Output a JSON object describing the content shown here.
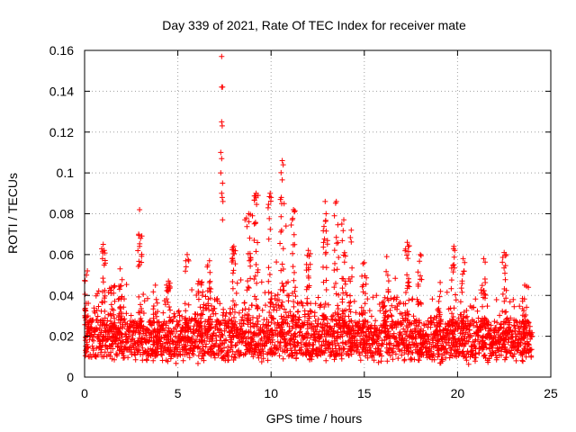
{
  "chart_data": {
    "type": "scatter",
    "title": "Day 339 of 2021, Rate Of TEC Index for receiver mate",
    "xlabel": "GPS time / hours",
    "ylabel": "ROTI / TECUs",
    "xlim": [
      0,
      25
    ],
    "ylim": [
      0,
      0.16
    ],
    "xticks": [
      0,
      5,
      10,
      15,
      20,
      25
    ],
    "yticks": [
      0,
      0.02,
      0.04,
      0.06,
      0.08,
      0.1,
      0.12,
      0.14,
      0.16
    ],
    "xtick_labels": [
      "0",
      "5",
      "10",
      "15",
      "20",
      "25"
    ],
    "ytick_labels": [
      "0",
      "0.02",
      "0.04",
      "0.06",
      "0.08",
      "0.1",
      "0.12",
      "0.14",
      "0.16"
    ],
    "grid": true,
    "marker": "+",
    "color": "#ff0000",
    "data_coverage_hours": [
      0,
      24
    ],
    "series": [
      {
        "points": [
          [
            7.35,
            0.157
          ],
          [
            7.35,
            0.142
          ],
          [
            7.4,
            0.142
          ],
          [
            7.35,
            0.125
          ],
          [
            7.38,
            0.123
          ],
          [
            7.3,
            0.11
          ],
          [
            7.35,
            0.107
          ],
          [
            7.3,
            0.1
          ],
          [
            7.4,
            0.095
          ],
          [
            7.35,
            0.09
          ],
          [
            7.38,
            0.088
          ],
          [
            7.42,
            0.086
          ],
          [
            7.4,
            0.077
          ],
          [
            2.95,
            0.082
          ],
          [
            10.6,
            0.106
          ],
          [
            10.65,
            0.104
          ],
          [
            10.55,
            0.088
          ],
          [
            10.5,
            0.087
          ],
          [
            10.7,
            0.085
          ],
          [
            11.2,
            0.082
          ],
          [
            11.25,
            0.081
          ],
          [
            10.8,
            0.074
          ],
          [
            9.2,
            0.09
          ],
          [
            9.3,
            0.089
          ],
          [
            8.8,
            0.08
          ],
          [
            9.0,
            0.079
          ],
          [
            8.6,
            0.077
          ],
          [
            9.1,
            0.075
          ],
          [
            9.95,
            0.09
          ],
          [
            10.0,
            0.088
          ],
          [
            12.9,
            0.086
          ],
          [
            13.5,
            0.086
          ],
          [
            12.95,
            0.08
          ],
          [
            13.4,
            0.079
          ],
          [
            13.9,
            0.077
          ],
          [
            14.3,
            0.072
          ],
          [
            1.0,
            0.065
          ],
          [
            1.05,
            0.062
          ],
          [
            2.9,
            0.07
          ],
          [
            3.0,
            0.068
          ],
          [
            2.95,
            0.064
          ],
          [
            17.3,
            0.066
          ],
          [
            17.35,
            0.064
          ],
          [
            19.8,
            0.064
          ],
          [
            19.85,
            0.062
          ],
          [
            22.5,
            0.061
          ],
          [
            22.6,
            0.06
          ],
          [
            5.5,
            0.06
          ],
          [
            0.1,
            0.05
          ],
          [
            0.15,
            0.052
          ],
          [
            1.9,
            0.053
          ],
          [
            15.0,
            0.056
          ],
          [
            16.2,
            0.059
          ],
          [
            21.4,
            0.058
          ],
          [
            20.3,
            0.058
          ],
          [
            18.0,
            0.06
          ],
          [
            12.0,
            0.062
          ],
          [
            8.0,
            0.064
          ],
          [
            6.7,
            0.057
          ],
          [
            23.6,
            0.045
          ],
          [
            23.8,
            0.044
          ],
          [
            4.5,
            0.047
          ],
          [
            3.8,
            0.045
          ]
        ]
      }
    ]
  }
}
